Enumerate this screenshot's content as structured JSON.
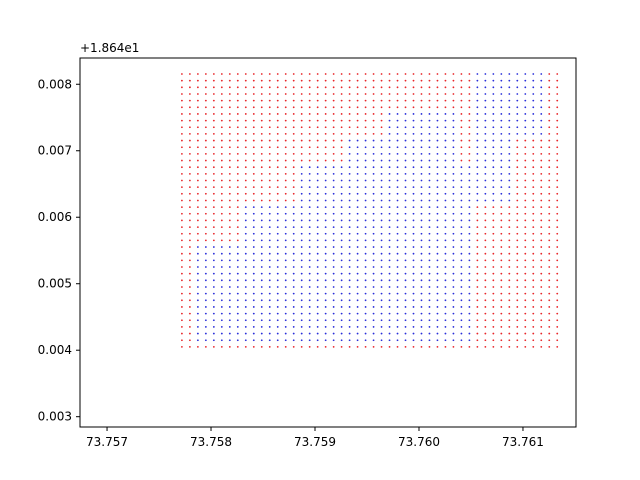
{
  "chart_data": {
    "type": "scatter",
    "title": "",
    "xlabel": "",
    "ylabel": "",
    "y_offset_label": "+1.864e1",
    "xlim": [
      73.75674,
      73.76151
    ],
    "ylim": [
      0.002845,
      0.008395
    ],
    "grid": false,
    "x_ticks": [
      73.757,
      73.758,
      73.759,
      73.76,
      73.761
    ],
    "x_tick_labels": [
      "73.757",
      "73.758",
      "73.759",
      "73.760",
      "73.761"
    ],
    "y_ticks": [
      0.003,
      0.004,
      0.005,
      0.006,
      0.007,
      0.008
    ],
    "y_tick_labels": [
      "0.003",
      "0.004",
      "0.005",
      "0.006",
      "0.007",
      "0.008"
    ],
    "grid_points": {
      "x_start": 73.75772,
      "x_step": 7.68e-05,
      "x_count": 48,
      "y_start": 0.00405,
      "y_step": 0.0001001,
      "y_count": 42
    },
    "colors": {
      "red": "#e8262a",
      "blue": "#2a2fd9"
    },
    "regions": [
      {
        "color": "blue",
        "x_range": [
          73.75785,
          73.76055
        ],
        "y_range": [
          0.0041,
          0.0056
        ]
      },
      {
        "color": "blue",
        "x_range": [
          73.7583,
          73.76055
        ],
        "y_range": [
          0.0056,
          0.0062
        ]
      },
      {
        "color": "blue",
        "x_range": [
          73.7588,
          73.76055
        ],
        "y_range": [
          0.0062,
          0.0068
        ]
      },
      {
        "color": "blue",
        "x_range": [
          73.7593,
          73.7604
        ],
        "y_range": [
          0.0068,
          0.0072
        ]
      },
      {
        "color": "blue",
        "x_range": [
          73.75965,
          73.7604
        ],
        "y_range": [
          0.0072,
          0.0076
        ]
      },
      {
        "color": "blue",
        "x_range": [
          73.7605,
          73.7609
        ],
        "y_range": [
          0.0062,
          0.0072
        ]
      },
      {
        "color": "blue",
        "x_range": [
          73.7605,
          73.76125
        ],
        "y_range": [
          0.0072,
          0.0082
        ]
      }
    ]
  }
}
